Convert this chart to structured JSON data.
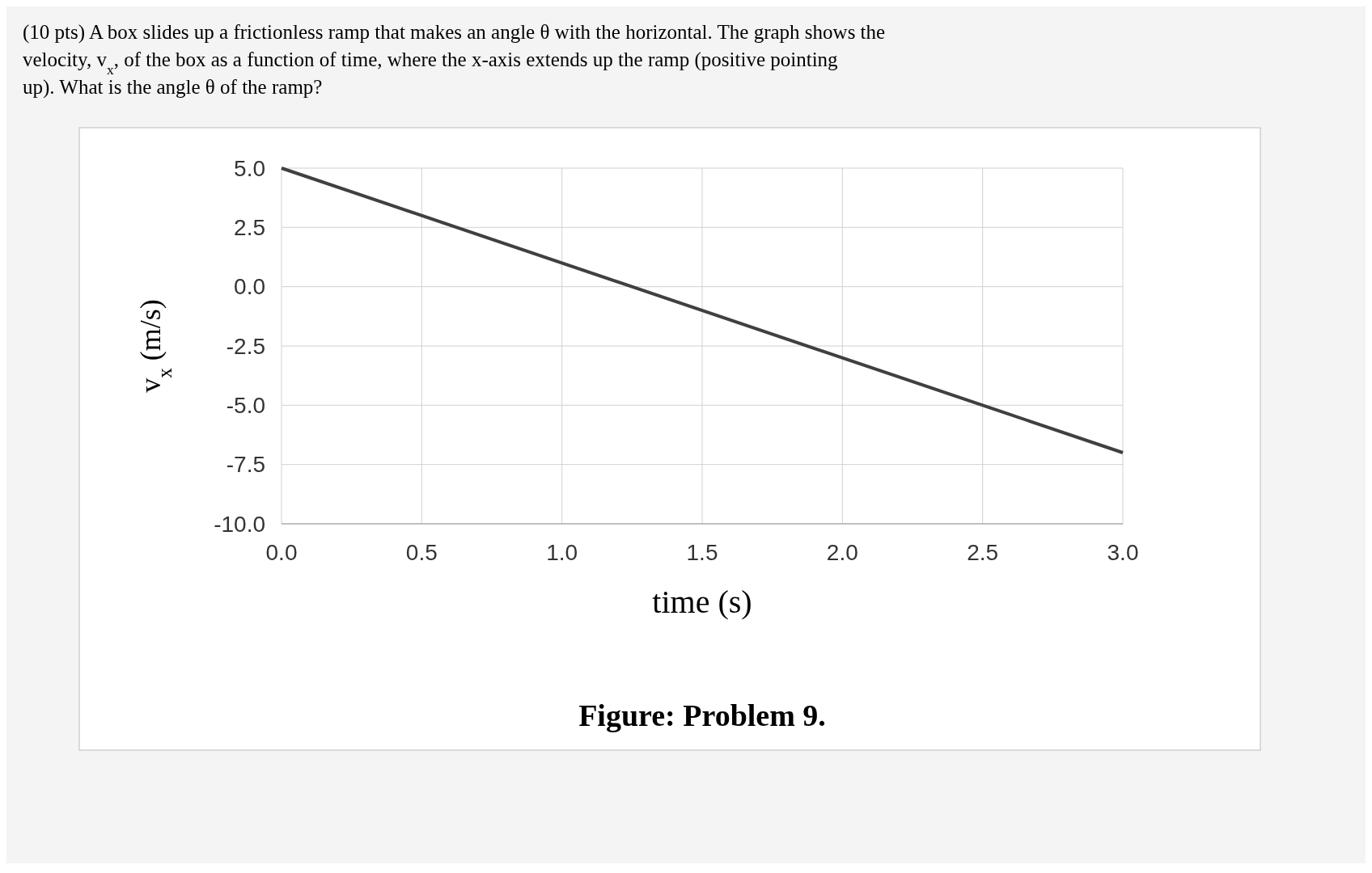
{
  "chart_data": {
    "type": "line",
    "title": "(10 pts) A box slides up a frictionless ramp that makes an angle θ with the horizontal. The graph shows the velocity, v$_{x}$, of the box as a function of time, where the x-axis extends up the ramp (positive pointing up). What is the angle θ of the ramp?",
    "xlabel": "time (s)",
    "ylabel": "v$_{x}$ (m/s)",
    "annotations": [
      "Figure: Problem 9."
    ],
    "x": [
      0,
      3
    ],
    "series": [
      {
        "color": "#404040",
        "values": [
          5,
          -7
        ]
      }
    ],
    "xlim": [
      0,
      3
    ],
    "xticks": [
      {
        "value": 0,
        "label": "0.0"
      },
      {
        "value": 0.5,
        "label": "0.5"
      },
      {
        "value": 1,
        "label": "1.0"
      },
      {
        "value": 1.5,
        "label": "1.5"
      },
      {
        "value": 2,
        "label": "2.0"
      },
      {
        "value": 2.5,
        "label": "2.5"
      },
      {
        "value": 3,
        "label": "3.0"
      }
    ],
    "ylim": [
      -10,
      5
    ],
    "yticks": [
      {
        "value": 5,
        "label": "5.0"
      },
      {
        "value": 2.5,
        "label": "2.5"
      },
      {
        "value": 0,
        "label": "0.0"
      },
      {
        "value": -2.5,
        "label": "-2.5"
      },
      {
        "value": -5,
        "label": "-5.0"
      },
      {
        "value": -7.5,
        "label": "-7.5"
      },
      {
        "value": -10,
        "label": "-10.0"
      }
    ],
    "grid": true,
    "marker": "none",
    "line_style": "solid"
  }
}
